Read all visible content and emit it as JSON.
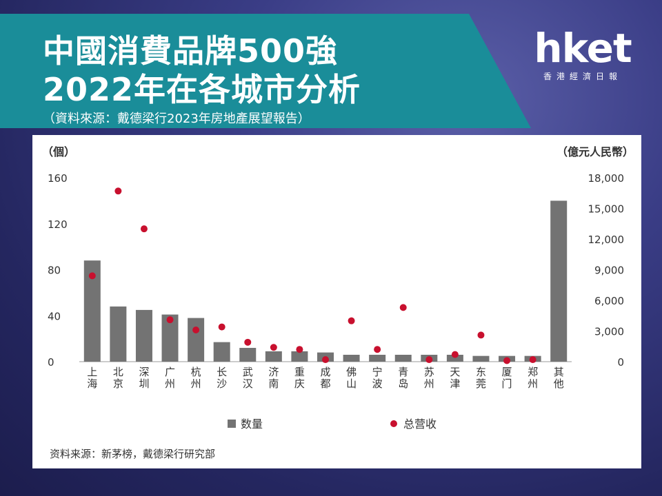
{
  "title": {
    "line1": "中國消費品牌500強",
    "line2": "2022年在各城市分析",
    "source": "（資料來源：戴德梁行2023年房地產展望報告）"
  },
  "logo": {
    "word": "hket",
    "subtitle": "香港經濟日報"
  },
  "colors": {
    "banner": "#1b8f9b",
    "bar": "#737373",
    "dot": "#c8102e"
  },
  "chart_data": {
    "type": "bar",
    "categories": [
      "上海",
      "北京",
      "深圳",
      "广州",
      "杭州",
      "长沙",
      "武汉",
      "济南",
      "重庆",
      "成都",
      "佛山",
      "宁波",
      "青岛",
      "苏州",
      "天津",
      "东莞",
      "厦门",
      "郑州",
      "其他"
    ],
    "series": [
      {
        "name": "数量",
        "type": "bar",
        "axis": "left",
        "values": [
          88,
          48,
          45,
          41,
          38,
          17,
          12,
          9,
          9,
          8,
          6,
          6,
          6,
          6,
          6,
          5,
          5,
          5,
          140
        ]
      },
      {
        "name": "总营收",
        "type": "scatter",
        "axis": "right",
        "values": [
          8400,
          16700,
          13000,
          4100,
          3100,
          3400,
          1900,
          1400,
          1200,
          200,
          4000,
          1200,
          5300,
          200,
          700,
          2600,
          100,
          200,
          null
        ]
      }
    ],
    "yleft": {
      "label": "（個）",
      "ticks": [
        "160",
        "120",
        "80",
        "40",
        "0"
      ],
      "range": [
        0,
        160
      ]
    },
    "yright": {
      "label": "（億元人民幣）",
      "ticks": [
        "18,000",
        "15,000",
        "12,000",
        "9,000",
        "6,000",
        "3,000",
        "0"
      ],
      "range": [
        0,
        18000
      ]
    },
    "legend": {
      "bar_label": "数量",
      "dot_label": "总营收",
      "position": "bottom"
    },
    "source_note": "资料来源：新茅榜，戴德梁行研究部"
  }
}
